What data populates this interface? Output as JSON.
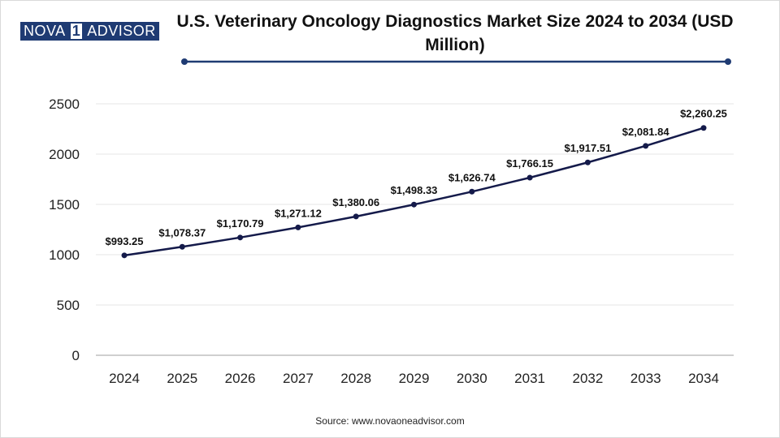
{
  "logo": {
    "part_a": "NOVA",
    "part_b": "1",
    "part_c": "ADVISOR"
  },
  "source": "Source: www.novaoneadvisor.com",
  "colors": {
    "line": "#141a4a",
    "accent": "#1f3b73",
    "grid": "#e6e6e6",
    "axis": "#bfbfbf"
  },
  "chart_data": {
    "type": "line",
    "title": "U.S. Veterinary Oncology Diagnostics Market Size 2024 to 2034 (USD Million)",
    "xlabel": "",
    "ylabel": "",
    "ylim": [
      0,
      2500
    ],
    "yticks": [
      0,
      500,
      1000,
      1500,
      2000,
      2500
    ],
    "grid": true,
    "categories": [
      "2024",
      "2025",
      "2026",
      "2027",
      "2028",
      "2029",
      "2030",
      "2031",
      "2032",
      "2033",
      "2034"
    ],
    "values": [
      993.25,
      1078.37,
      1170.79,
      1271.12,
      1380.06,
      1498.33,
      1626.74,
      1766.15,
      1917.51,
      2081.84,
      2260.25
    ],
    "data_labels": [
      "$993.25",
      "$1,078.37",
      "$1,170.79",
      "$1,271.12",
      "$1,380.06",
      "$1,498.33",
      "$1,626.74",
      "$1,766.15",
      "$1,917.51",
      "$2,081.84",
      "$2,260.25"
    ]
  }
}
